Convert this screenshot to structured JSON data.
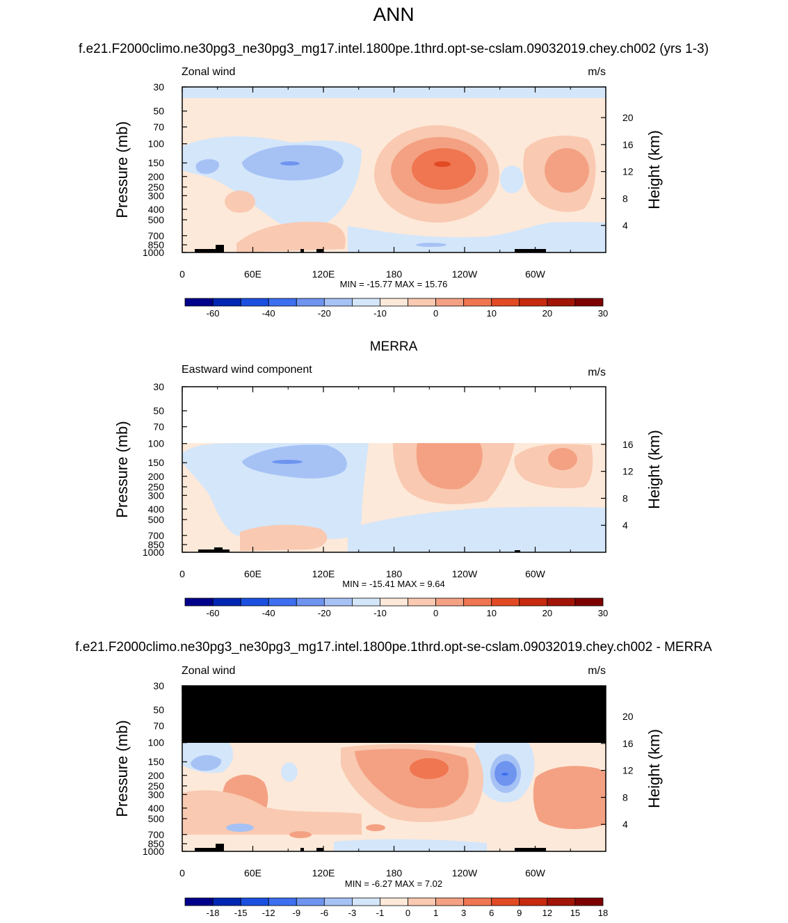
{
  "header": {
    "season_title": "ANN",
    "test_case_title": "f.e21.F2000climo.ne30pg3_ne30pg3_mg17.intel.1800pe.1thrd.opt-se-cslam.09032019.chey.ch002 (yrs 1-3)",
    "obs_title": "MERRA",
    "diff_title": "f.e21.F2000climo.ne30pg3_ne30pg3_mg17.intel.1800pe.1thrd.opt-se-cslam.09032019.chey.ch002 - MERRA"
  },
  "colors": {
    "abs_levels": [
      "#00008B",
      "#0026B3",
      "#1A4FE0",
      "#3D6FF0",
      "#6E94F0",
      "#A6C2F5",
      "#D4E6FA",
      "#FDE9D9",
      "#F9C9B1",
      "#F4A183",
      "#EF7650",
      "#E24A24",
      "#C72A0E",
      "#A11407",
      "#7D0000"
    ],
    "diff_levels": [
      "#00008B",
      "#0026B3",
      "#1A4FE0",
      "#3D6FF0",
      "#6E94F0",
      "#A6C2F5",
      "#D4E6FA",
      "#FDE9D9",
      "#F9C9B1",
      "#F4A183",
      "#EF7650",
      "#E24A24",
      "#C72A0E",
      "#A11407",
      "#7D0000"
    ],
    "mask": "#000000"
  },
  "chart_data": [
    {
      "type": "heatmap",
      "panel": "test",
      "field_label": "Zonal wind",
      "units": "m/s",
      "ylabel": "Pressure (mb)",
      "ylabel_right": "Height (km)",
      "x_ticks": [
        "0",
        "60E",
        "120E",
        "180",
        "120W",
        "60W"
      ],
      "x_range": [
        0,
        360
      ],
      "y_ticks": [
        "30",
        "50",
        "70",
        "100",
        "150",
        "200",
        "250",
        "300",
        "400",
        "500",
        "700",
        "850",
        "1000"
      ],
      "y_range_mb": [
        1000,
        30
      ],
      "height_ticks_km": [
        "20",
        "16",
        "12",
        "8",
        "4"
      ],
      "stats": "MIN = -15.77  MAX =  15.76",
      "colorbar_labels": [
        "-60",
        "-40",
        "-20",
        "-10",
        "0",
        "10",
        "20",
        "30"
      ],
      "features": [
        {
          "desc": "easterly band at top",
          "lon": [
            0,
            360
          ],
          "p": [
            30,
            40
          ],
          "value": -5
        },
        {
          "desc": "westerly max over central Pacific",
          "lon_center": 220,
          "p_center": 150,
          "value": 15.76
        },
        {
          "desc": "westerly max over Atlantic",
          "lon_center": 323,
          "p_center": 170,
          "value": 10
        },
        {
          "desc": "easterly jet over Indian Ocean",
          "lon_center": 90,
          "p_center": 150,
          "value": -15.77
        }
      ]
    },
    {
      "type": "heatmap",
      "panel": "obs",
      "field_label": "Eastward wind component",
      "units": "m/s",
      "ylabel": "Pressure (mb)",
      "ylabel_right": "Height (km)",
      "x_ticks": [
        "0",
        "60E",
        "120E",
        "180",
        "120W",
        "60W"
      ],
      "x_range": [
        0,
        360
      ],
      "y_ticks": [
        "30",
        "50",
        "70",
        "100",
        "150",
        "200",
        "250",
        "300",
        "400",
        "500",
        "700",
        "850",
        "1000"
      ],
      "y_range_mb": [
        1000,
        30
      ],
      "height_ticks_km": [
        "16",
        "12",
        "8",
        "4"
      ],
      "stats": "MIN = -15.41  MAX =  9.64",
      "colorbar_labels": [
        "-60",
        "-40",
        "-20",
        "-10",
        "0",
        "10",
        "20",
        "30"
      ],
      "features": [
        {
          "desc": "no data above 100 mb",
          "p": [
            30,
            100
          ]
        },
        {
          "desc": "westerly max over central Pacific",
          "lon_center": 220,
          "p_center": 170,
          "value": 9.64
        },
        {
          "desc": "easterly jet over Indian Ocean",
          "lon_center": 90,
          "p_center": 150,
          "value": -15.41
        }
      ]
    },
    {
      "type": "heatmap",
      "panel": "diff",
      "field_label": "Zonal wind",
      "units": "m/s",
      "ylabel": "Pressure (mb)",
      "ylabel_right": "Height (km)",
      "x_ticks": [
        "0",
        "60E",
        "120E",
        "180",
        "120W",
        "60W"
      ],
      "x_range": [
        0,
        360
      ],
      "y_ticks": [
        "30",
        "50",
        "70",
        "100",
        "150",
        "200",
        "250",
        "300",
        "400",
        "500",
        "700",
        "850",
        "1000"
      ],
      "y_range_mb": [
        1000,
        30
      ],
      "height_ticks_km": [
        "20",
        "16",
        "12",
        "8",
        "4"
      ],
      "stats": "MIN =  -6.27  MAX =   7.02",
      "colorbar_labels": [
        "-18",
        "-15",
        "-12",
        "-9",
        "-6",
        "-3",
        "-1",
        "0",
        "1",
        "3",
        "6",
        "9",
        "12",
        "15",
        "18"
      ],
      "features": [
        {
          "desc": "masked (black) above 100 mb",
          "p": [
            30,
            100
          ]
        },
        {
          "desc": "positive max over central Pacific",
          "lon_center": 215,
          "p_center": 170,
          "value": 7.02
        },
        {
          "desc": "negative min near 85W",
          "lon_center": 275,
          "p_center": 200,
          "value": -6.27
        }
      ]
    }
  ]
}
